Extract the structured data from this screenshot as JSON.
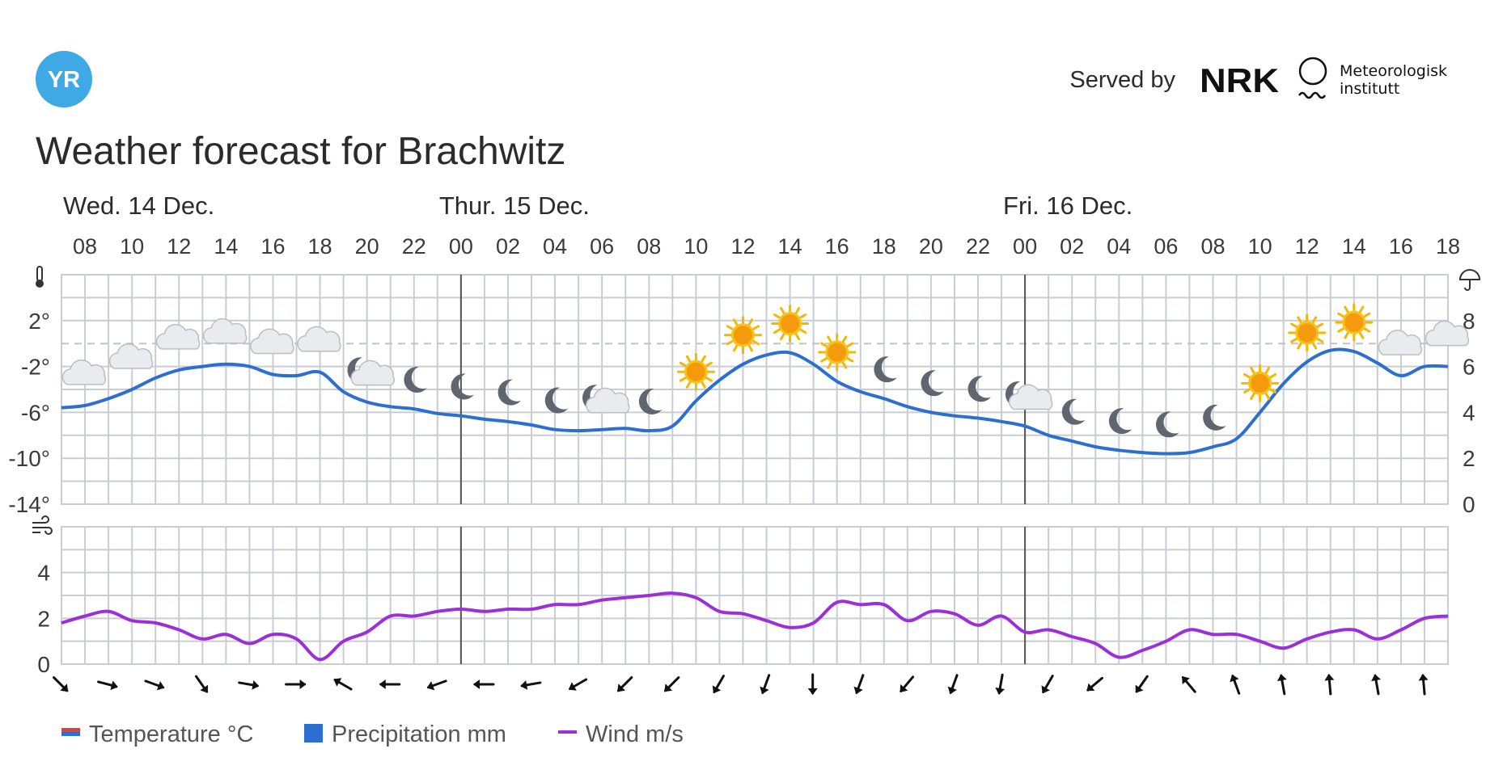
{
  "header": {
    "logo_text": "YR",
    "served_by": "Served by",
    "nrk_logo_text": "NRK",
    "met_name_line1": "Meteorologisk",
    "met_name_line2": "institutt",
    "title": "Weather forecast for Brachwitz"
  },
  "days": [
    {
      "label": "Wed. 14 Dec.",
      "start_index": 0
    },
    {
      "label": "Thur. 15 Dec.",
      "start_index": 8
    },
    {
      "label": "Fri. 16 Dec.",
      "start_index": 20
    }
  ],
  "colors": {
    "temperature": "#2c6fd1",
    "wind": "#9b30d9",
    "grid": "#c9cdd3",
    "day_line": "#555555",
    "logo": "#3fa9e5",
    "text": "#2b2b2b",
    "axis_text": "#3a3a3a",
    "legend_temp_red": "#e0413a"
  },
  "legend": [
    {
      "label": "Temperature °C",
      "icon": "temperature-swatch"
    },
    {
      "label": "Precipitation mm",
      "icon": "precipitation-swatch"
    },
    {
      "label": "Wind m/s",
      "icon": "wind-swatch"
    }
  ],
  "chart_data": [
    {
      "type": "line",
      "series": [
        {
          "name": "Temperature °C",
          "x": [
            "07",
            "08",
            "09",
            "10",
            "11",
            "12",
            "13",
            "14",
            "15",
            "16",
            "17",
            "18",
            "19",
            "20",
            "21",
            "22",
            "23",
            "00",
            "01",
            "02",
            "03",
            "04",
            "05",
            "06",
            "07",
            "08",
            "09",
            "10",
            "11",
            "12",
            "13",
            "14",
            "15",
            "16",
            "17",
            "18",
            "19",
            "20",
            "21",
            "22",
            "23",
            "00",
            "01",
            "02",
            "03",
            "04",
            "05",
            "06",
            "07",
            "08",
            "09",
            "10",
            "11",
            "12",
            "13",
            "14",
            "15",
            "16",
            "17",
            "18"
          ],
          "values": [
            -5.6,
            -5.4,
            -4.8,
            -4.0,
            -3.0,
            -2.3,
            -2.0,
            -1.8,
            -2.0,
            -2.7,
            -2.8,
            -2.5,
            -4.2,
            -5.1,
            -5.5,
            -5.7,
            -6.1,
            -6.3,
            -6.6,
            -6.8,
            -7.1,
            -7.5,
            -7.6,
            -7.5,
            -7.4,
            -7.6,
            -7.2,
            -5.0,
            -3.2,
            -1.8,
            -1.0,
            -0.8,
            -1.8,
            -3.3,
            -4.2,
            -4.8,
            -5.5,
            -6.0,
            -6.3,
            -6.5,
            -6.8,
            -7.2,
            -8.0,
            -8.5,
            -9.0,
            -9.3,
            -9.5,
            -9.6,
            -9.5,
            -9.0,
            -8.3,
            -6.0,
            -3.5,
            -1.6,
            -0.6,
            -0.7,
            -1.7,
            -2.8,
            -2.0,
            -2.0
          ]
        }
      ],
      "icons": [
        "partly-cloudy",
        "cloudy",
        "cloudy",
        "cloudy",
        "cloudy",
        "cloudy",
        "night-partly-cloudy",
        "moon",
        "moon",
        "moon",
        "moon",
        "night-partly-cloudy",
        "moon",
        "sun",
        "sun",
        "sun",
        "sun",
        "moon",
        "moon",
        "moon",
        "night-partly-cloudy",
        "moon",
        "moon",
        "moon",
        "moon",
        "sun",
        "sun",
        "sun",
        "cloudy",
        "cloudy"
      ],
      "y_left": {
        "ticks": [
          "2°",
          "-2°",
          "-6°",
          "-10°",
          "-14°"
        ],
        "values": [
          2,
          -2,
          -6,
          -10,
          -14
        ],
        "ylim": [
          -14,
          6
        ]
      },
      "y_right": {
        "label": "Precipitation mm",
        "ticks": [
          "8",
          "6",
          "4",
          "2",
          "0"
        ],
        "values": [
          8,
          6,
          4,
          2,
          0
        ],
        "ylim": [
          0,
          10
        ]
      },
      "x_tick_labels": [
        "08",
        "10",
        "12",
        "14",
        "16",
        "18",
        "20",
        "22",
        "00",
        "02",
        "04",
        "06",
        "08",
        "10",
        "12",
        "14",
        "16",
        "18",
        "20",
        "22",
        "00",
        "02",
        "04",
        "06",
        "08",
        "10",
        "12",
        "14",
        "16",
        "18"
      ],
      "dashed_reference": 0,
      "grid": true
    },
    {
      "type": "line",
      "series": [
        {
          "name": "Wind m/s",
          "x": [
            "07",
            "08",
            "09",
            "10",
            "11",
            "12",
            "13",
            "14",
            "15",
            "16",
            "17",
            "18",
            "19",
            "20",
            "21",
            "22",
            "23",
            "00",
            "01",
            "02",
            "03",
            "04",
            "05",
            "06",
            "07",
            "08",
            "09",
            "10",
            "11",
            "12",
            "13",
            "14",
            "15",
            "16",
            "17",
            "18",
            "19",
            "20",
            "21",
            "22",
            "23",
            "00",
            "01",
            "02",
            "03",
            "04",
            "05",
            "06",
            "07",
            "08",
            "09",
            "10",
            "11",
            "12",
            "13",
            "14",
            "15",
            "16",
            "17",
            "18"
          ],
          "values": [
            1.8,
            2.1,
            2.3,
            1.9,
            1.8,
            1.5,
            1.1,
            1.3,
            0.9,
            1.3,
            1.1,
            0.2,
            1.0,
            1.4,
            2.1,
            2.1,
            2.3,
            2.4,
            2.3,
            2.4,
            2.4,
            2.6,
            2.6,
            2.8,
            2.9,
            3.0,
            3.1,
            2.9,
            2.3,
            2.2,
            1.9,
            1.6,
            1.8,
            2.7,
            2.6,
            2.6,
            1.9,
            2.3,
            2.2,
            1.7,
            2.1,
            1.4,
            1.5,
            1.2,
            0.9,
            0.3,
            0.6,
            1.0,
            1.5,
            1.3,
            1.3,
            1.0,
            0.7,
            1.1,
            1.4,
            1.5,
            1.1,
            1.5,
            2.0,
            2.1
          ]
        }
      ],
      "ylim": [
        0,
        6
      ],
      "y_ticks": [
        "4",
        "2",
        "0"
      ],
      "y_values": [
        4,
        2,
        0
      ],
      "wind_directions_deg": [
        135,
        105,
        110,
        145,
        100,
        90,
        300,
        270,
        250,
        270,
        260,
        240,
        225,
        225,
        210,
        200,
        180,
        200,
        220,
        200,
        190,
        210,
        230,
        215,
        320,
        340,
        350,
        355,
        350,
        355
      ],
      "grid": true
    }
  ]
}
